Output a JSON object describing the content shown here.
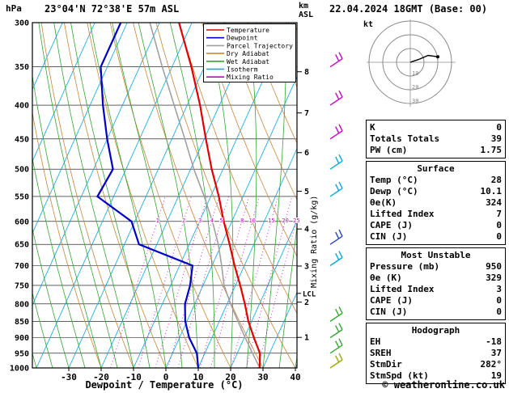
{
  "header": {
    "pressure_unit": "hPa",
    "title": "23°04'N 72°38'E 57m ASL",
    "date": "22.04.2024 18GMT (Base: 00)",
    "altitude_unit_top": "km",
    "altitude_unit_bottom": "ASL"
  },
  "axes": {
    "xlabel": "Dewpoint / Temperature (°C)",
    "mixing_ratio_label": "Mixing Ratio (g/kg)",
    "lcl_label": "LCL"
  },
  "legend": {
    "items": [
      {
        "label": "Temperature",
        "color": "#e60000"
      },
      {
        "label": "Dewpoint",
        "color": "#0000cc"
      },
      {
        "label": "Parcel Trajectory",
        "color": "#a0a0a0"
      },
      {
        "label": "Dry Adiabat",
        "color": "#cc8533"
      },
      {
        "label": "Wet Adiabat",
        "color": "#2eaa2e"
      },
      {
        "label": "Isotherm",
        "color": "#00a8e8"
      },
      {
        "label": "Mixing Ratio",
        "color": "#cc00cc"
      }
    ]
  },
  "colors": {
    "temperature": "#e60000",
    "dewpoint": "#0000cc",
    "parcel": "#a0a0a0",
    "dry_adiabat": "#cc8533",
    "wet_adiabat": "#2eaa2e",
    "isotherm": "#00a8e8",
    "mixing_ratio": "#cc00cc"
  },
  "chart_data": {
    "type": "skewt-log-p sounding",
    "title": "23°04'N 72°38'E 57m ASL",
    "pressure_axis": [
      300,
      350,
      400,
      450,
      500,
      550,
      600,
      650,
      700,
      750,
      800,
      850,
      900,
      950,
      1000
    ],
    "temp_axis": [
      -30,
      -20,
      -10,
      0,
      10,
      20,
      30,
      40
    ],
    "pressure_hpa": [
      1000,
      950,
      900,
      850,
      800,
      750,
      700,
      650,
      600,
      550,
      500,
      450,
      400,
      350,
      300
    ],
    "temperature_c": [
      29,
      27,
      23,
      19,
      15.5,
      11.5,
      7,
      2.5,
      -2.5,
      -7.5,
      -13.5,
      -19.5,
      -26,
      -34,
      -44
    ],
    "dewpoint_c": [
      10,
      7.5,
      3,
      -0.5,
      -3,
      -4,
      -6,
      -25.5,
      -31,
      -45,
      -44,
      -50,
      -56,
      -62,
      -62
    ],
    "parcel_c": [
      29,
      24.7,
      20.3,
      15.8,
      11.1,
      6.5,
      3,
      -1,
      -6,
      -12,
      -19,
      -26,
      -34,
      -43,
      -53
    ],
    "isotherm_step_c": 10,
    "dry_adiabat_step_c": 10,
    "wet_adiabat_step_c": 5,
    "mixing_ratio_gkg": [
      1,
      2,
      3,
      4,
      5,
      8,
      10,
      15,
      20,
      25
    ],
    "km_axis": [
      {
        "km": 1,
        "p": 899
      },
      {
        "km": 2,
        "p": 795
      },
      {
        "km": 3,
        "p": 701
      },
      {
        "km": 4,
        "p": 616
      },
      {
        "km": 5,
        "p": 540
      },
      {
        "km": 6,
        "p": 472
      },
      {
        "km": 7,
        "p": 411
      },
      {
        "km": 8,
        "p": 356
      }
    ],
    "lcl_pressure": 771,
    "winds": [
      {
        "p": 350,
        "color": "#cc00cc"
      },
      {
        "p": 400,
        "color": "#cc00cc"
      },
      {
        "p": 450,
        "color": "#cc00cc"
      },
      {
        "p": 500,
        "color": "#00aadd"
      },
      {
        "p": 550,
        "color": "#00aadd"
      },
      {
        "p": 650,
        "color": "#2244cc"
      },
      {
        "p": 700,
        "color": "#00aadd"
      },
      {
        "p": 850,
        "color": "#33aa33"
      },
      {
        "p": 900,
        "color": "#33aa33"
      },
      {
        "p": 950,
        "color": "#33aa33"
      },
      {
        "p": 1000,
        "color": "#99aa00"
      }
    ]
  },
  "hodograph": {
    "unit_label": "kt",
    "rings": [
      10,
      20,
      30
    ],
    "trace_kt": [
      [
        0,
        0
      ],
      [
        6,
        2
      ],
      [
        13,
        5
      ],
      [
        20,
        4
      ]
    ]
  },
  "stats": {
    "indices": {
      "rows": [
        [
          "K",
          "0"
        ],
        [
          "Totals Totals",
          "39"
        ],
        [
          "PW (cm)",
          "1.75"
        ]
      ]
    },
    "surface": {
      "title": "Surface",
      "rows": [
        [
          "Temp (°C)",
          "28"
        ],
        [
          "Dewp (°C)",
          "10.1"
        ],
        [
          "θe(K)",
          "324"
        ],
        [
          "Lifted Index",
          "7"
        ],
        [
          "CAPE (J)",
          "0"
        ],
        [
          "CIN (J)",
          "0"
        ]
      ]
    },
    "most_unstable": {
      "title": "Most Unstable",
      "rows": [
        [
          "Pressure (mb)",
          "950"
        ],
        [
          "θe (K)",
          "329"
        ],
        [
          "Lifted Index",
          "3"
        ],
        [
          "CAPE (J)",
          "0"
        ],
        [
          "CIN (J)",
          "0"
        ]
      ]
    },
    "hodograph": {
      "title": "Hodograph",
      "rows": [
        [
          "EH",
          "-18"
        ],
        [
          "SREH",
          "37"
        ],
        [
          "StmDir",
          "282°"
        ],
        [
          "StmSpd (kt)",
          "19"
        ]
      ]
    }
  },
  "footer": {
    "copyright": "© weatheronline.co.uk"
  }
}
